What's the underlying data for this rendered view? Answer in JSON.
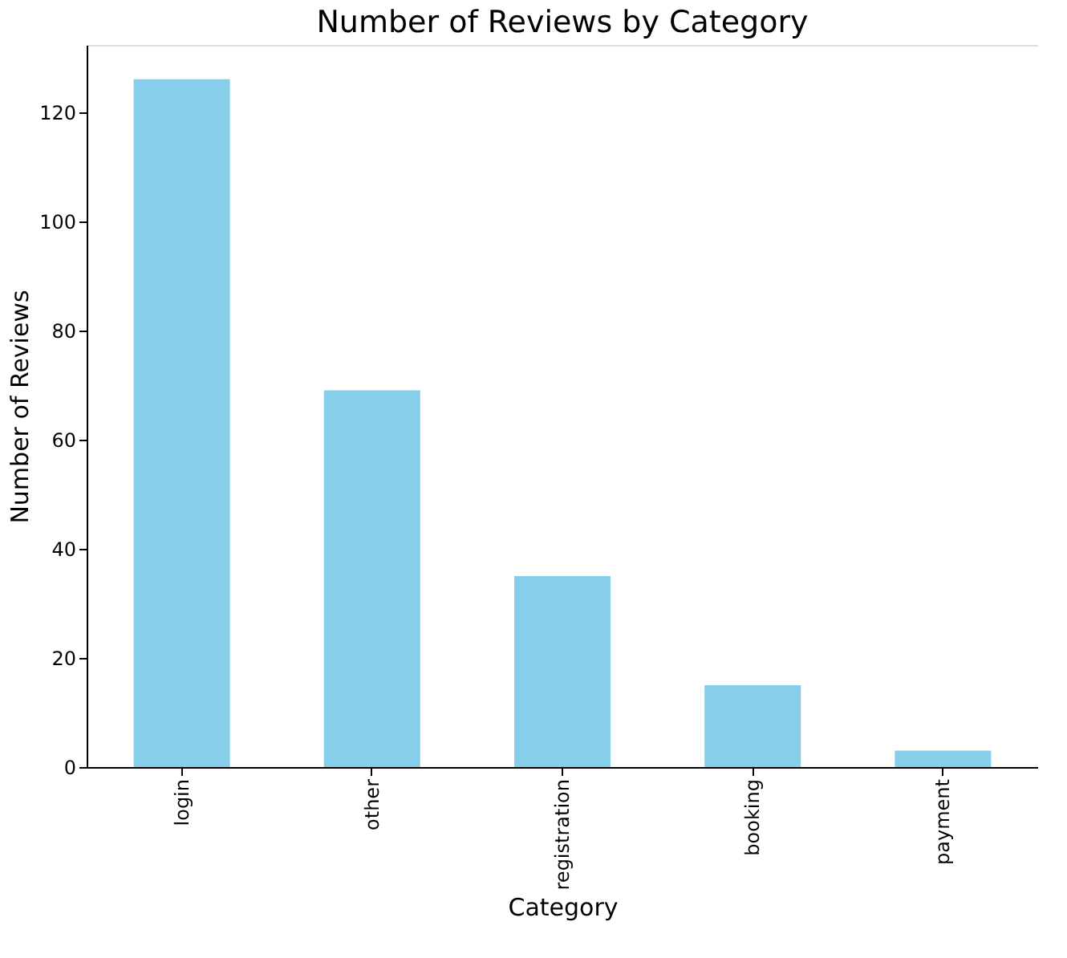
{
  "chart_data": {
    "type": "bar",
    "title": "Number of Reviews by Category",
    "xlabel": "Category",
    "ylabel": "Number of Reviews",
    "categories": [
      "login",
      "other",
      "registration",
      "booking",
      "payment"
    ],
    "values": [
      126,
      69,
      35,
      15,
      3
    ],
    "color": "#87ceeb",
    "ylim": [
      0,
      132.3
    ],
    "yticks": [
      0,
      20,
      40,
      60,
      80,
      100,
      120
    ],
    "grid": false
  }
}
